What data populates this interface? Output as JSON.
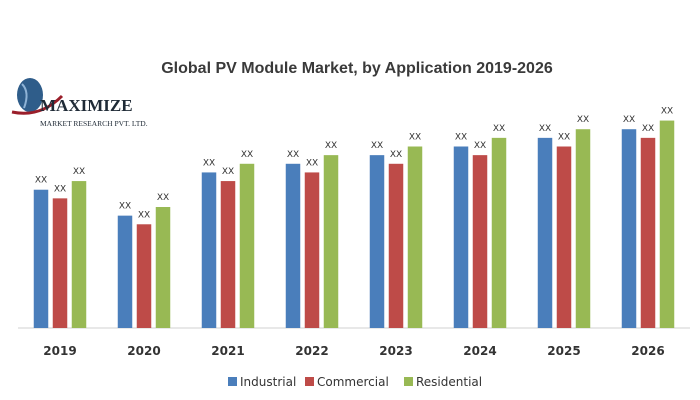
{
  "logo": {
    "name": "MAXIMIZE",
    "subtitle": "MARKET RESEARCH PVT. LTD."
  },
  "chart_data": {
    "type": "bar",
    "title": "Global PV Module Market, by Application 2019-2026",
    "categories": [
      "2019",
      "2020",
      "2021",
      "2022",
      "2023",
      "2024",
      "2025",
      "2026"
    ],
    "series": [
      {
        "name": "Industrial",
        "color": "#4a7ebb",
        "values": [
          16,
          13,
          18,
          19,
          20,
          21,
          22,
          23
        ]
      },
      {
        "name": "Commercial",
        "color": "#be4b48",
        "values": [
          15,
          12,
          17,
          18,
          19,
          20,
          21,
          22
        ]
      },
      {
        "name": "Residential",
        "color": "#98b954",
        "values": [
          17,
          14,
          19,
          20,
          21,
          22,
          23,
          24
        ]
      }
    ],
    "data_label": "XX",
    "ylim": [
      0,
      28
    ],
    "grid": false,
    "legend": "bottom"
  }
}
